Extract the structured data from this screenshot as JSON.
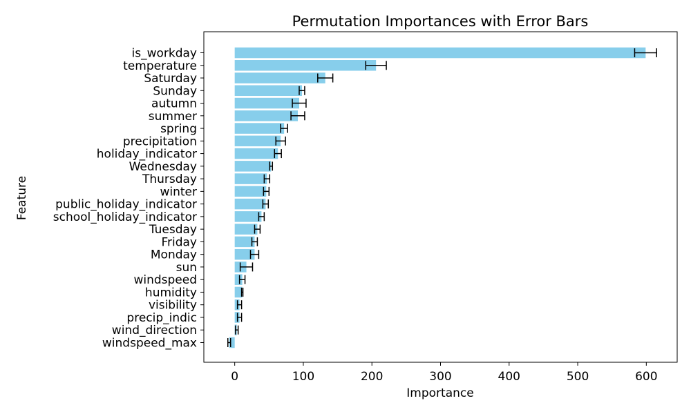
{
  "chart_data": {
    "type": "bar",
    "orientation": "horizontal",
    "title": "Permutation Importances with Error Bars",
    "xlabel": "Importance",
    "ylabel": "Feature",
    "xlim": [
      -45,
      645
    ],
    "xticks": [
      0,
      100,
      200,
      300,
      400,
      500,
      600
    ],
    "grid": false,
    "bar_color": "#87ceeb",
    "error_color": "#000000",
    "categories": [
      "is_workday",
      "temperature",
      "Saturday",
      "Sunday",
      "autumn",
      "summer",
      "spring",
      "precipitation",
      "holiday_indicator",
      "Wednesday",
      "Thursday",
      "winter",
      "public_holiday_indicator",
      "school_holiday_indicator",
      "Tuesday",
      "Friday",
      "Monday",
      "sun",
      "windspeed",
      "humidity",
      "visibility",
      "precip_indic",
      "wind_direction",
      "windspeed_max"
    ],
    "values": [
      599,
      206,
      132,
      98,
      94,
      92,
      72,
      67,
      63,
      53,
      47,
      46,
      45,
      39,
      33,
      29,
      29,
      17,
      11,
      11,
      7,
      7,
      3,
      -8
    ],
    "errors": [
      16,
      15,
      11,
      4,
      10,
      10,
      5,
      7,
      5,
      2,
      4,
      4,
      4,
      4,
      4,
      4,
      6,
      9,
      4,
      1,
      3,
      3,
      2,
      2
    ]
  }
}
